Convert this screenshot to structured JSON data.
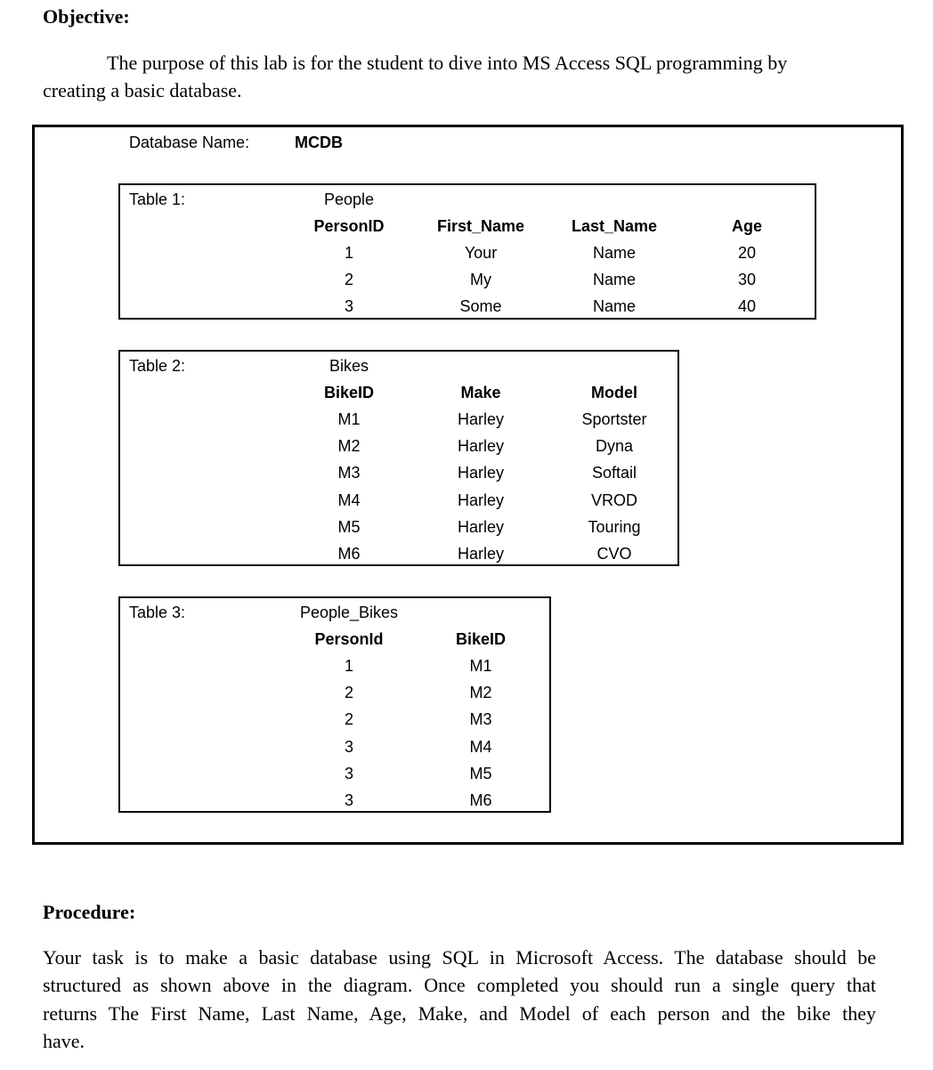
{
  "objective": {
    "heading": "Objective:",
    "text_line1": "The purpose of this lab is for the student to dive into MS Access SQL programming by",
    "text_line2": "creating a basic database."
  },
  "database": {
    "label": "Database Name:",
    "name": "MCDB"
  },
  "tables": [
    {
      "label": "Table 1:",
      "name": "People",
      "columns": [
        "PersonID",
        "First_Name",
        "Last_Name",
        "Age"
      ],
      "rows": [
        [
          "1",
          "Your",
          "Name",
          "20"
        ],
        [
          "2",
          "My",
          "Name",
          "30"
        ],
        [
          "3",
          "Some",
          "Name",
          "40"
        ]
      ]
    },
    {
      "label": "Table 2:",
      "name": "Bikes",
      "columns": [
        "BikeID",
        "Make",
        "Model"
      ],
      "rows": [
        [
          "M1",
          "Harley",
          "Sportster"
        ],
        [
          "M2",
          "Harley",
          "Dyna"
        ],
        [
          "M3",
          "Harley",
          "Softail"
        ],
        [
          "M4",
          "Harley",
          "VROD"
        ],
        [
          "M5",
          "Harley",
          "Touring"
        ],
        [
          "M6",
          "Harley",
          "CVO"
        ]
      ]
    },
    {
      "label": "Table 3:",
      "name": "People_Bikes",
      "columns": [
        "PersonId",
        "BikeID"
      ],
      "rows": [
        [
          "1",
          "M1"
        ],
        [
          "2",
          "M2"
        ],
        [
          "2",
          "M3"
        ],
        [
          "3",
          "M4"
        ],
        [
          "3",
          "M5"
        ],
        [
          "3",
          "M6"
        ]
      ]
    }
  ],
  "procedure": {
    "heading": "Procedure:",
    "lines": [
      "Your task is to make a basic database using SQL in Microsoft Access. The database should be",
      "structured as shown above in the diagram. Once completed you should run a single query that",
      "returns The First Name, Last Name, Age, Make, and Model of each person and the bike they",
      "have."
    ]
  }
}
